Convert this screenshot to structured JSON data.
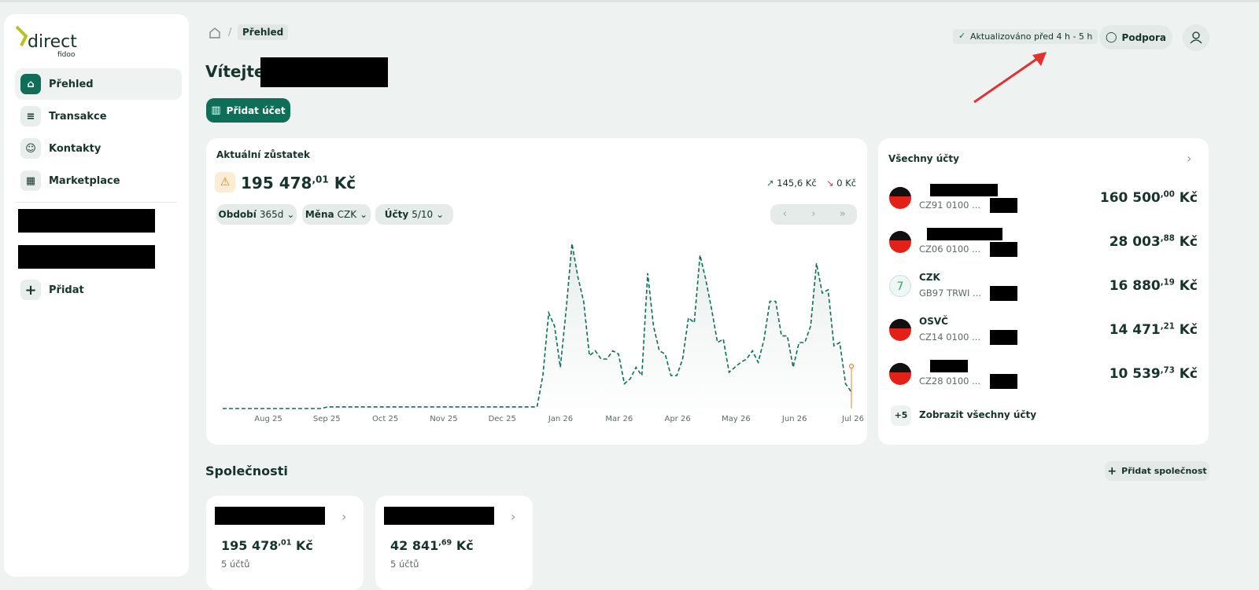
{
  "sidebar": {
    "logo": "direct",
    "logo_sub": "fidoo",
    "nav": [
      "Přehled",
      "Transakce",
      "Kontakty",
      "Marketplace"
    ],
    "add": "Přidat"
  },
  "header": {
    "breadcrumb": "Přehled",
    "status": "Aktualizováno před 4 h - 5 h",
    "support": "Podpora"
  },
  "welcome": "Vítejte,",
  "add_account": "Přidat účet",
  "balance": {
    "title": "Aktuální zůstatek",
    "amount": "195 478",
    "decimals": ",01",
    "currency": "Kč",
    "income": "145,6 Kč",
    "expense": "0 Kč",
    "filters": [
      {
        "label": "Období",
        "value": "365d"
      },
      {
        "label": "Měna",
        "value": "CZK"
      },
      {
        "label": "Účty",
        "value": "5/10"
      }
    ]
  },
  "chart_data": {
    "type": "line",
    "xticks": [
      "Aug 25",
      "Sep 25",
      "Oct 25",
      "Nov 25",
      "Dec 25",
      "Jan 26",
      "Mar 26",
      "Apr 26",
      "May 26",
      "Jun 26",
      "Jul 26"
    ],
    "series": [
      {
        "name": "Zůstatek",
        "color": "#0f6e57",
        "values": [
          0,
          0,
          0,
          0,
          0,
          0,
          0,
          0,
          0,
          0,
          0,
          0,
          0,
          0,
          0,
          0,
          0,
          0,
          1,
          1,
          1,
          1,
          1,
          1,
          1,
          1,
          1,
          1,
          1,
          1,
          1,
          1,
          1,
          1,
          1,
          1,
          1,
          1,
          1,
          1,
          1,
          1,
          1,
          1,
          1,
          1,
          1,
          1,
          1,
          1,
          1,
          1,
          1,
          1,
          1,
          20,
          58,
          50,
          25,
          60,
          100,
          80,
          65,
          32,
          35,
          30,
          30,
          35,
          33,
          15,
          18,
          25,
          20,
          82,
          50,
          35,
          33,
          20,
          20,
          30,
          55,
          52,
          93,
          78,
          60,
          40,
          42,
          22,
          25,
          28,
          30,
          35,
          28,
          42,
          65,
          65,
          44,
          44,
          25,
          40,
          40,
          50,
          88,
          70,
          72,
          38,
          40,
          15,
          10
        ]
      }
    ]
  },
  "accounts": {
    "title": "Všechny účty",
    "items": [
      {
        "iban": "CZ91 0100 ...",
        "amount": "160 500",
        "decimals": ",00",
        "currency": "Kč"
      },
      {
        "iban": "CZ06 0100 ...",
        "amount": "28 003",
        "decimals": ",88",
        "currency": "Kč"
      },
      {
        "name": "CZK",
        "iban": "GB97 TRWI ...",
        "amount": "16 880",
        "decimals": ",19",
        "currency": "Kč"
      },
      {
        "name": "OSVČ",
        "iban": "CZ14 0100 ...",
        "amount": "14 471",
        "decimals": ",21",
        "currency": "Kč"
      },
      {
        "iban": "CZ28 0100 ...",
        "amount": "10 539",
        "decimals": ",73",
        "currency": "Kč"
      }
    ],
    "more_count": "+5",
    "more": "Zobrazit všechny účty"
  },
  "companies": {
    "title": "Společnosti",
    "add": "Přidat společnost",
    "items": [
      {
        "amount": "195 478",
        "decimals": ",01",
        "currency": "Kč",
        "accounts": "5 účtů"
      },
      {
        "amount": "42 841",
        "decimals": ",69",
        "currency": "Kč",
        "accounts": "5 účtů"
      }
    ]
  }
}
